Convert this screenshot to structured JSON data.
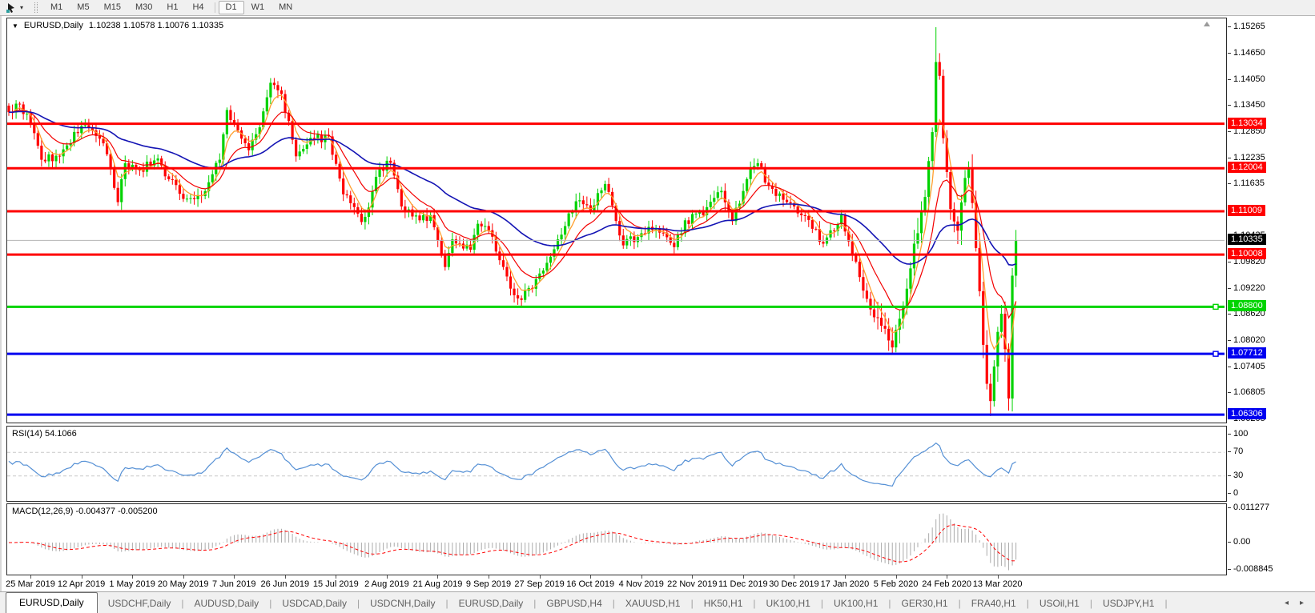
{
  "icons": {
    "collapse": "▼",
    "tool_dropdown": "▾",
    "tab_scroll_left": "◂",
    "tab_scroll_right": "▸"
  },
  "toolbar": {
    "timeframes": [
      "M1",
      "M5",
      "M15",
      "M30",
      "H1",
      "H4",
      "D1",
      "W1",
      "MN"
    ],
    "selected": "D1"
  },
  "chart": {
    "symbol_period": "EURUSD,Daily",
    "ohlc_text": "1.10238 1.10578 1.10076 1.10335",
    "axis_labels": [
      "1.15265",
      "1.14650",
      "1.14050",
      "1.13450",
      "1.12850",
      "1.12235",
      "1.11635",
      "1.10435",
      "1.09820",
      "1.09220",
      "1.08620",
      "1.08020",
      "1.07405",
      "1.06805",
      "1.06205"
    ],
    "current_price": {
      "label": "1.10335",
      "bg": "#000000",
      "fg": "#ffffff",
      "line_color": "#b4b4b4"
    }
  },
  "rsi": {
    "label": "RSI(14) 54.1066",
    "axis_values": [
      100,
      70,
      30,
      0
    ],
    "level_lines": [
      70,
      30
    ],
    "color": "#5590d5"
  },
  "macd": {
    "label": "MACD(12,26,9) -0.004377 -0.005200",
    "axis_labels": [
      "0.011277",
      "0.00",
      "-0.008845"
    ],
    "axis_values": [
      0.011277,
      0,
      -0.008845
    ],
    "histogram_color": "#ababab",
    "signal_color": "#ff0000"
  },
  "dates": [
    "25 Mar 2019",
    "12 Apr 2019",
    "1 May 2019",
    "20 May 2019",
    "7 Jun 2019",
    "26 Jun 2019",
    "15 Jul 2019",
    "2 Aug 2019",
    "21 Aug 2019",
    "9 Sep 2019",
    "27 Sep 2019",
    "16 Oct 2019",
    "4 Nov 2019",
    "22 Nov 2019",
    "11 Dec 2019",
    "30 Dec 2019",
    "17 Jan 2020",
    "5 Feb 2020",
    "24 Feb 2020",
    "13 Mar 2020"
  ],
  "tabs": {
    "items": [
      "EURUSD,Daily",
      "USDCHF,Daily",
      "AUDUSD,Daily",
      "USDCAD,Daily",
      "USDCNH,Daily",
      "EURUSD,Daily",
      "GBPUSD,H4",
      "XAUUSD,H1",
      "HK50,H1",
      "UK100,H1",
      "UK100,H1",
      "GER30,H1",
      "FRA40,H1",
      "USOil,H1",
      "USDJPY,H1"
    ],
    "active_index": 0
  },
  "chart_data": {
    "type": "candlestick",
    "symbol": "EURUSD",
    "timeframe": "Daily",
    "last_bar_ohlc": {
      "open": 1.10238,
      "high": 1.10578,
      "low": 1.10076,
      "close": 1.10335
    },
    "visible_price_range": [
      1.0609,
      1.1547
    ],
    "bar_count": 278,
    "bull_color": "#00d200",
    "bear_color": "#ff0000",
    "close_anchors": [
      [
        0,
        1.133
      ],
      [
        3,
        1.1348
      ],
      [
        6,
        1.1305
      ],
      [
        9,
        1.122
      ],
      [
        14,
        1.1228
      ],
      [
        20,
        1.1298
      ],
      [
        23,
        1.1288
      ],
      [
        26,
        1.1258
      ],
      [
        30,
        1.1122
      ],
      [
        32,
        1.1212
      ],
      [
        36,
        1.1197
      ],
      [
        41,
        1.1223
      ],
      [
        44,
        1.1175
      ],
      [
        49,
        1.113
      ],
      [
        53,
        1.1136
      ],
      [
        55,
        1.1168
      ],
      [
        58,
        1.122
      ],
      [
        60,
        1.1335
      ],
      [
        63,
        1.1288
      ],
      [
        66,
        1.1242
      ],
      [
        69,
        1.1295
      ],
      [
        72,
        1.1398
      ],
      [
        75,
        1.1372
      ],
      [
        79,
        1.1228
      ],
      [
        84,
        1.1268
      ],
      [
        88,
        1.1274
      ],
      [
        92,
        1.114
      ],
      [
        97,
        1.1076
      ],
      [
        98,
        1.1088
      ],
      [
        102,
        1.1198
      ],
      [
        105,
        1.1213
      ],
      [
        108,
        1.1112
      ],
      [
        113,
        1.108
      ],
      [
        116,
        1.1092
      ],
      [
        120,
        1.0972
      ],
      [
        122,
        1.1036
      ],
      [
        127,
        1.1012
      ],
      [
        129,
        1.1072
      ],
      [
        133,
        1.1042
      ],
      [
        138,
        1.0922
      ],
      [
        141,
        1.0896
      ],
      [
        146,
        1.0957
      ],
      [
        151,
        1.1036
      ],
      [
        156,
        1.1124
      ],
      [
        160,
        1.1102
      ],
      [
        164,
        1.1164
      ],
      [
        169,
        1.1022
      ],
      [
        174,
        1.105
      ],
      [
        178,
        1.1062
      ],
      [
        183,
        1.1018
      ],
      [
        186,
        1.108
      ],
      [
        191,
        1.1092
      ],
      [
        196,
        1.1148
      ],
      [
        199,
        1.1078
      ],
      [
        204,
        1.1198
      ],
      [
        206,
        1.1212
      ],
      [
        209,
        1.116
      ],
      [
        214,
        1.1122
      ],
      [
        219,
        1.109
      ],
      [
        224,
        1.1026
      ],
      [
        229,
        1.1092
      ],
      [
        232,
        1.1
      ],
      [
        237,
        1.0874
      ],
      [
        240,
        1.0836
      ],
      [
        243,
        1.0786
      ],
      [
        246,
        1.0882
      ],
      [
        249,
        1.1026
      ],
      [
        252,
        1.1134
      ],
      [
        254,
        1.1284
      ],
      [
        255,
        1.1446
      ],
      [
        256,
        1.1414
      ],
      [
        257,
        1.127
      ],
      [
        259,
        1.1106
      ],
      [
        261,
        1.1056
      ],
      [
        263,
        1.1178
      ],
      [
        264,
        1.1198
      ],
      [
        266,
        1.1016
      ],
      [
        267,
        1.0916
      ],
      [
        268,
        1.0792
      ],
      [
        269,
        1.0702
      ],
      [
        270,
        1.0662
      ],
      [
        271,
        1.0742
      ],
      [
        272,
        1.0822
      ],
      [
        273,
        1.0864
      ],
      [
        274,
        1.0782
      ],
      [
        275,
        1.0668
      ],
      [
        276,
        1.0952
      ],
      [
        277,
        1.10335
      ]
    ],
    "wick_overrides": {
      "141": {
        "l": 1.0879
      },
      "243": {
        "l": 1.0778
      },
      "255": {
        "h": 1.15265
      },
      "270": {
        "l": 1.0636
      },
      "275": {
        "l": 1.064
      },
      "277": {
        "h": 1.10578
      }
    },
    "moving_averages": [
      {
        "type": "ema",
        "period": 5,
        "color": "#ff9f2e",
        "width": 1.3
      },
      {
        "type": "ema",
        "period": 13,
        "color": "#f30000",
        "width": 1.2
      },
      {
        "type": "ema",
        "period": 45,
        "color": "#1414b4",
        "width": 1.6
      }
    ],
    "levels": [
      {
        "price": 1.13034,
        "label": "1.13034",
        "color": "#ff0000",
        "marker": false
      },
      {
        "price": 1.12004,
        "label": "1.12004",
        "color": "#ff0000",
        "marker": false
      },
      {
        "price": 1.11009,
        "label": "1.11009",
        "color": "#ff0000",
        "marker": false
      },
      {
        "price": 1.10008,
        "label": "1.10008",
        "color": "#ff0000",
        "marker": false
      },
      {
        "price": 1.088,
        "label": "1.08800",
        "color": "#00d400",
        "marker": true
      },
      {
        "price": 1.07712,
        "label": "1.07712",
        "color": "#0000f0",
        "marker": true
      },
      {
        "price": 1.06306,
        "label": "1.06306",
        "color": "#0000f0",
        "marker": false
      }
    ],
    "indicators": [
      {
        "name": "RSI",
        "period": 14,
        "current": 54.1066
      },
      {
        "name": "MACD",
        "fast": 12,
        "slow": 26,
        "signal": 9,
        "current_macd": -0.004377,
        "current_signal": -0.0052
      }
    ]
  }
}
